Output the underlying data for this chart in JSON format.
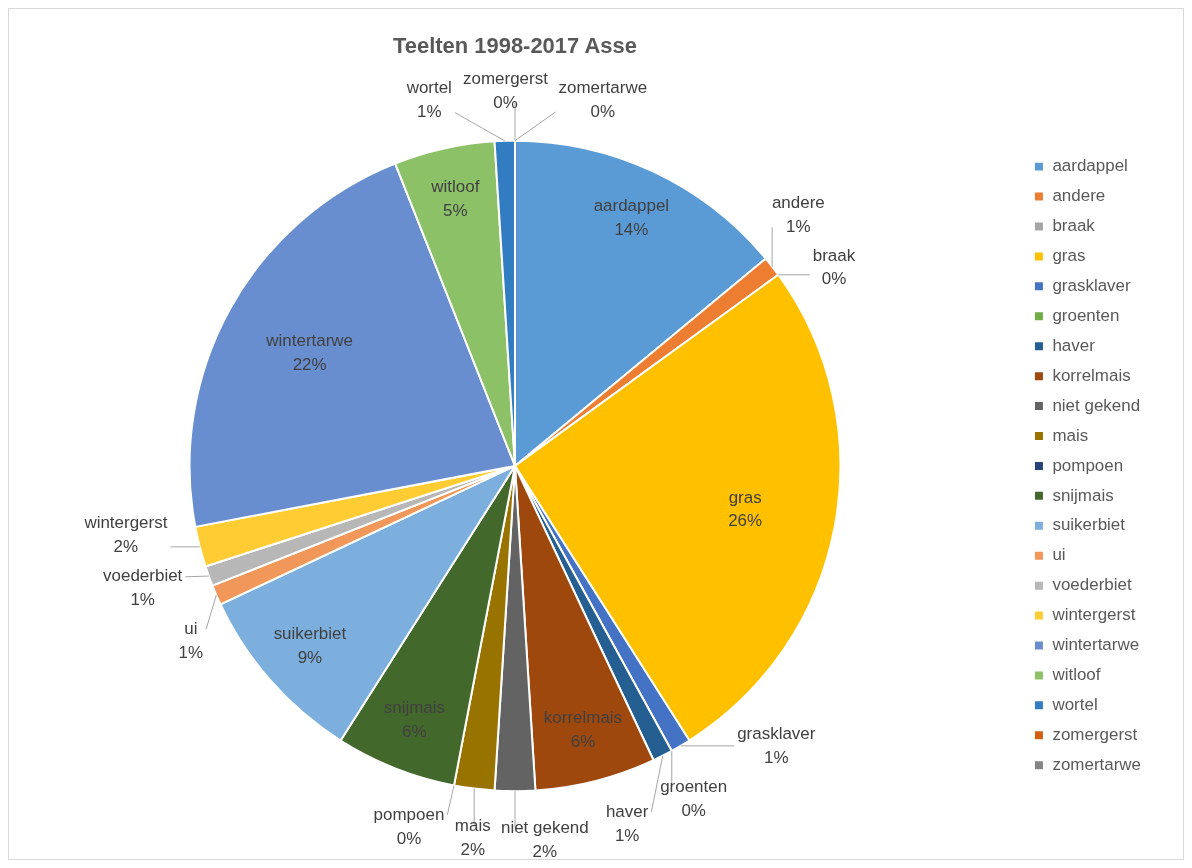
{
  "chart_data": {
    "type": "pie",
    "title": "Teelten 1998-2017 Asse",
    "categories": [
      "aardappel",
      "andere",
      "braak",
      "gras",
      "grasklaver",
      "groenten",
      "haver",
      "korrelmais",
      "niet gekend",
      "mais",
      "pompoen",
      "snijmais",
      "suikerbiet",
      "ui",
      "voederbiet",
      "wintergerst",
      "wintertarwe",
      "witloof",
      "wortel",
      "zomergerst",
      "zomertarwe"
    ],
    "values": [
      14,
      1,
      0,
      26,
      1,
      0,
      1,
      6,
      2,
      2,
      0,
      6,
      9,
      1,
      1,
      2,
      22,
      5,
      1,
      0,
      0
    ],
    "value_labels": [
      "14%",
      "1%",
      "0%",
      "26%",
      "1%",
      "0%",
      "1%",
      "6%",
      "2%",
      "2%",
      "0%",
      "6%",
      "9%",
      "1%",
      "1%",
      "2%",
      "22%",
      "5%",
      "1%",
      "0%",
      "0%"
    ],
    "colors": [
      "#5b9bd5",
      "#ed7d31",
      "#a5a5a5",
      "#ffc000",
      "#4472c4",
      "#70ad47",
      "#255e91",
      "#9e480e",
      "#636363",
      "#997300",
      "#264478",
      "#43682b",
      "#7cafdd",
      "#f1975a",
      "#b7b7b7",
      "#ffcd33",
      "#698ed0",
      "#8cc168",
      "#327dc2",
      "#d26012",
      "#848484"
    ],
    "legend": "right"
  }
}
